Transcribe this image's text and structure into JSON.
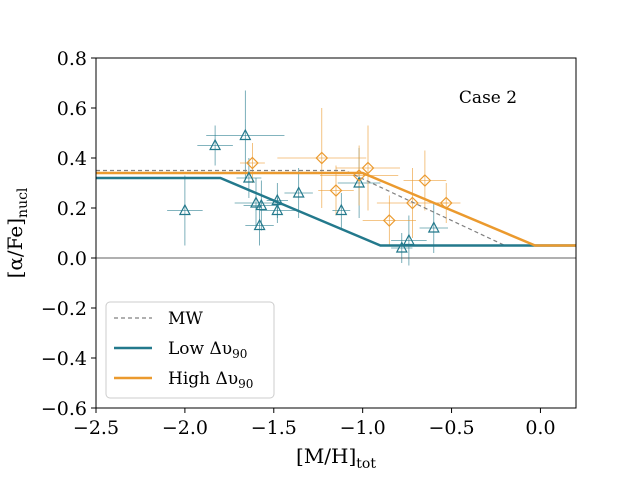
{
  "chart_data": {
    "type": "scatter",
    "title": "",
    "annotation": "Case 2",
    "xlabel": {
      "main": "[M/H]",
      "sub": "tot"
    },
    "ylabel": {
      "main": "[α/Fe]",
      "sub": "nucl"
    },
    "xlim": [
      -2.5,
      0.2
    ],
    "ylim": [
      -0.6,
      0.8
    ],
    "xticks": [
      -2.5,
      -2.0,
      -1.5,
      -1.0,
      -0.5,
      0.0
    ],
    "xtick_labels": [
      "−2.5",
      "−2.0",
      "−1.5",
      "−1.0",
      "−0.5",
      "0.0"
    ],
    "yticks": [
      -0.6,
      -0.4,
      -0.2,
      0.0,
      0.2,
      0.4,
      0.6,
      0.8
    ],
    "ytick_labels": [
      "−0.6",
      "−0.4",
      "−0.2",
      "0.0",
      "0.2",
      "0.4",
      "0.6",
      "0.8"
    ],
    "reference_line_y": 0.0,
    "grid": false,
    "legend_position": "lower-left",
    "colors": {
      "mw": "#808080",
      "low": "#23798c",
      "high": "#eb9a2e",
      "reference": "#808080"
    },
    "lines": [
      {
        "name": "MW",
        "key": "mw",
        "legend": "MW",
        "legend_sub": "",
        "style": "dashed",
        "points": [
          [
            -2.5,
            0.35
          ],
          [
            -1.1,
            0.35
          ],
          [
            -0.2,
            0.05
          ]
        ]
      },
      {
        "name": "Low",
        "key": "low",
        "legend": "Low Δυ",
        "legend_sub": "90",
        "style": "solid",
        "points": [
          [
            -2.5,
            0.32
          ],
          [
            -1.8,
            0.32
          ],
          [
            -0.9,
            0.05
          ],
          [
            0.2,
            0.05
          ]
        ]
      },
      {
        "name": "High",
        "key": "high",
        "legend": "High Δυ",
        "legend_sub": "90",
        "style": "solid",
        "points": [
          [
            -2.5,
            0.34
          ],
          [
            -1.0,
            0.34
          ],
          [
            -0.03,
            0.05
          ],
          [
            0.2,
            0.05
          ]
        ]
      }
    ],
    "series": [
      {
        "name": "Low Δυ90 galaxies",
        "key": "low",
        "marker": "triangle",
        "points": [
          {
            "x": -2.0,
            "y": 0.19,
            "xerr": 0.1,
            "yerr": 0.14
          },
          {
            "x": -1.83,
            "y": 0.45,
            "xerr": 0.1,
            "yerr": 0.08
          },
          {
            "x": -1.66,
            "y": 0.49,
            "xerr": 0.22,
            "yerr": 0.18
          },
          {
            "x": -1.64,
            "y": 0.32,
            "xerr": 0.07,
            "yerr": 0.08
          },
          {
            "x": -1.6,
            "y": 0.22,
            "xerr": 0.12,
            "yerr": 0.1
          },
          {
            "x": -1.58,
            "y": 0.13,
            "xerr": 0.08,
            "yerr": 0.08
          },
          {
            "x": -1.57,
            "y": 0.21,
            "xerr": 0.1,
            "yerr": 0.1
          },
          {
            "x": -1.48,
            "y": 0.19,
            "xerr": 0.1,
            "yerr": 0.05
          },
          {
            "x": -1.48,
            "y": 0.23,
            "xerr": 0.06,
            "yerr": 0.07
          },
          {
            "x": -1.36,
            "y": 0.26,
            "xerr": 0.08,
            "yerr": 0.1
          },
          {
            "x": -1.12,
            "y": 0.19,
            "xerr": 0.05,
            "yerr": 0.07
          },
          {
            "x": -1.02,
            "y": 0.3,
            "xerr": 0.12,
            "yerr": 0.14
          },
          {
            "x": -0.78,
            "y": 0.04,
            "xerr": 0.06,
            "yerr": 0.06
          },
          {
            "x": -0.74,
            "y": 0.07,
            "xerr": 0.1,
            "yerr": 0.1
          },
          {
            "x": -0.6,
            "y": 0.12,
            "xerr": 0.08,
            "yerr": 0.1
          }
        ]
      },
      {
        "name": "High Δυ90 galaxies",
        "key": "high",
        "marker": "diamond",
        "points": [
          {
            "x": -1.62,
            "y": 0.38,
            "xerr": 0.07,
            "yerr": 0.08
          },
          {
            "x": -1.23,
            "y": 0.4,
            "xerr": 0.25,
            "yerr": 0.2
          },
          {
            "x": -1.15,
            "y": 0.27,
            "xerr": 0.1,
            "yerr": 0.1
          },
          {
            "x": -1.02,
            "y": 0.33,
            "xerr": 0.22,
            "yerr": 0.12
          },
          {
            "x": -0.97,
            "y": 0.36,
            "xerr": 0.18,
            "yerr": 0.17
          },
          {
            "x": -0.85,
            "y": 0.15,
            "xerr": 0.15,
            "yerr": 0.1
          },
          {
            "x": -0.72,
            "y": 0.22,
            "xerr": 0.2,
            "yerr": 0.14
          },
          {
            "x": -0.65,
            "y": 0.31,
            "xerr": 0.12,
            "yerr": 0.12
          },
          {
            "x": -0.53,
            "y": 0.22,
            "xerr": 0.08,
            "yerr": 0.08
          }
        ]
      }
    ]
  }
}
